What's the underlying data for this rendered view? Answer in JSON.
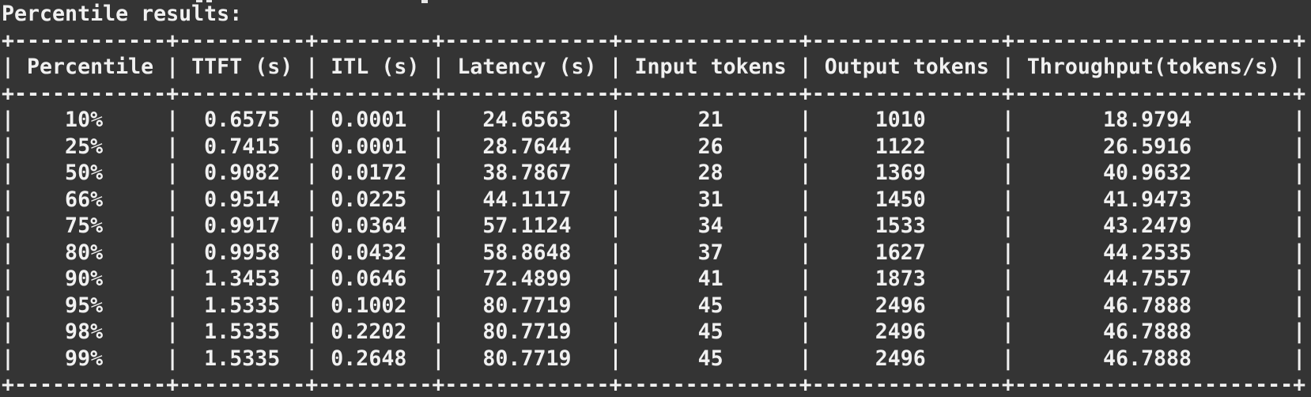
{
  "colors": {
    "background": "#343434",
    "text": "#f1f1f1"
  },
  "terminal": {
    "title_line": "Percentile results:",
    "table": {
      "columns": [
        {
          "label": "Percentile",
          "width": 12
        },
        {
          "label": "TTFT (s)",
          "width": 10
        },
        {
          "label": "ITL (s)",
          "width": 9
        },
        {
          "label": "Latency (s)",
          "width": 13
        },
        {
          "label": "Input tokens",
          "width": 14
        },
        {
          "label": "Output tokens",
          "width": 15
        },
        {
          "label": "Throughput(tokens/s)",
          "width": 22
        }
      ],
      "rows": [
        [
          "10%",
          "0.6575",
          "0.0001",
          "24.6563",
          "21",
          "1010",
          "18.9794"
        ],
        [
          "25%",
          "0.7415",
          "0.0001",
          "28.7644",
          "26",
          "1122",
          "26.5916"
        ],
        [
          "50%",
          "0.9082",
          "0.0172",
          "38.7867",
          "28",
          "1369",
          "40.9632"
        ],
        [
          "66%",
          "0.9514",
          "0.0225",
          "44.1117",
          "31",
          "1450",
          "41.9473"
        ],
        [
          "75%",
          "0.9917",
          "0.0364",
          "57.1124",
          "34",
          "1533",
          "43.2479"
        ],
        [
          "80%",
          "0.9958",
          "0.0432",
          "58.8648",
          "37",
          "1627",
          "44.2535"
        ],
        [
          "90%",
          "1.3453",
          "0.0646",
          "72.4899",
          "41",
          "1873",
          "44.7557"
        ],
        [
          "95%",
          "1.5335",
          "0.1002",
          "80.7719",
          "45",
          "2496",
          "46.7888"
        ],
        [
          "98%",
          "1.5335",
          "0.2202",
          "80.7719",
          "45",
          "2496",
          "46.7888"
        ],
        [
          "99%",
          "1.5335",
          "0.2648",
          "80.7719",
          "45",
          "2496",
          "46.7888"
        ]
      ]
    }
  }
}
